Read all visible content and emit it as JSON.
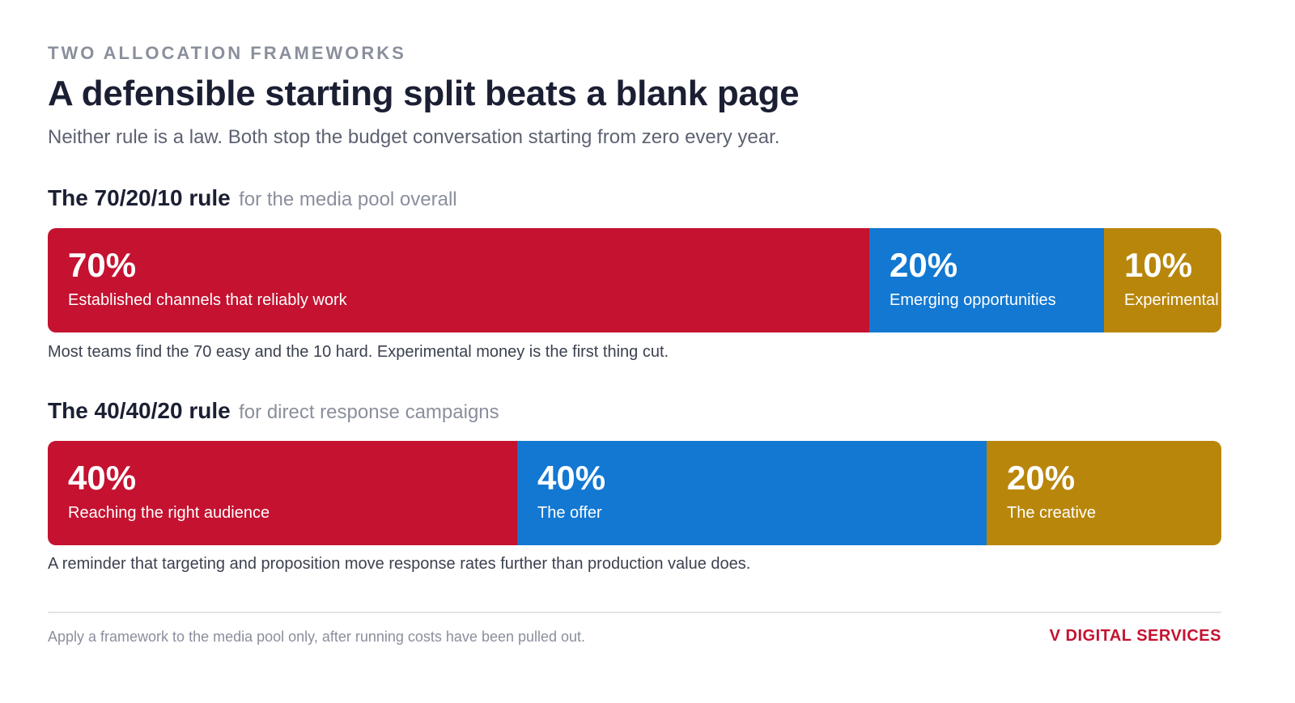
{
  "header": {
    "eyebrow": "TWO ALLOCATION FRAMEWORKS",
    "title": "A defensible starting split beats a blank page",
    "subtitle": "Neither rule is a law. Both stop the budget conversation starting from zero every year."
  },
  "colors": {
    "segment_1": "#c41230",
    "segment_2": "#1278d2",
    "segment_3": "#b8860b"
  },
  "chart_data": [
    {
      "type": "bar",
      "title": "The 70/20/10 rule",
      "subtitle": "for the media pool overall",
      "note": "Most teams find the 70 easy and the 10 hard. Experimental money is the first thing cut.",
      "categories": [
        "Established channels that reliably work",
        "Emerging opportunities",
        "Experimental"
      ],
      "values": [
        70,
        20,
        10
      ],
      "value_labels": [
        "70%",
        "20%",
        "10%"
      ],
      "unit": "%"
    },
    {
      "type": "bar",
      "title": "The 40/40/20 rule",
      "subtitle": "for direct response campaigns",
      "note": "A reminder that targeting and proposition move response rates further than production value does.",
      "categories": [
        "Reaching the right audience",
        "The offer",
        "The creative"
      ],
      "values": [
        40,
        40,
        20
      ],
      "value_labels": [
        "40%",
        "40%",
        "20%"
      ],
      "unit": "%"
    }
  ],
  "footer": {
    "note": "Apply a framework to the media pool only, after running costs have been pulled out.",
    "brand": "V DIGITAL SERVICES"
  }
}
